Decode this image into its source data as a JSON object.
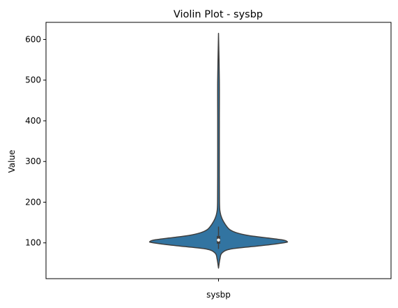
{
  "chart_data": {
    "type": "violin",
    "title": "Violin Plot - sysbp",
    "xlabel": "",
    "ylabel": "Value",
    "categories": [
      "sysbp"
    ],
    "ylim": [
      12,
      642
    ],
    "yticks": [
      100,
      200,
      300,
      400,
      500,
      600
    ],
    "color": "#3274a1",
    "edge_color": "#3f3f3f",
    "grid": false,
    "density_profile": [
      {
        "value": 38,
        "halfwidth": 0.0
      },
      {
        "value": 60,
        "halfwidth": 0.01
      },
      {
        "value": 75,
        "halfwidth": 0.025
      },
      {
        "value": 85,
        "halfwidth": 0.09
      },
      {
        "value": 92,
        "halfwidth": 0.28
      },
      {
        "value": 97,
        "halfwidth": 0.41
      },
      {
        "value": 101,
        "halfwidth": 0.49
      },
      {
        "value": 103,
        "halfwidth": 0.5
      },
      {
        "value": 107,
        "halfwidth": 0.47
      },
      {
        "value": 112,
        "halfwidth": 0.36
      },
      {
        "value": 118,
        "halfwidth": 0.22
      },
      {
        "value": 125,
        "halfwidth": 0.13
      },
      {
        "value": 133,
        "halfwidth": 0.08
      },
      {
        "value": 145,
        "halfwidth": 0.05
      },
      {
        "value": 160,
        "halfwidth": 0.025
      },
      {
        "value": 175,
        "halfwidth": 0.012
      },
      {
        "value": 200,
        "halfwidth": 0.007
      },
      {
        "value": 300,
        "halfwidth": 0.006
      },
      {
        "value": 400,
        "halfwidth": 0.006
      },
      {
        "value": 500,
        "halfwidth": 0.006
      },
      {
        "value": 615,
        "halfwidth": 0.0
      }
    ],
    "box": {
      "q1": 98,
      "median": 107,
      "q3": 117,
      "whisker_low": 85,
      "whisker_high": 140
    }
  }
}
